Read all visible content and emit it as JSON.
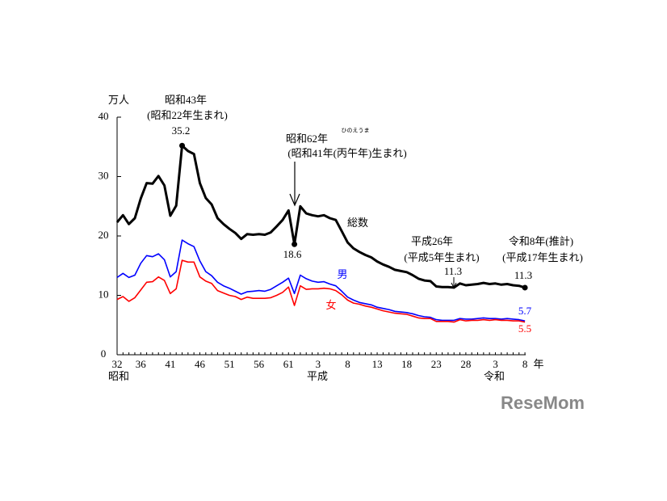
{
  "chart_data": {
    "type": "line",
    "y_unit": "万人",
    "x_unit": "年",
    "categories": [
      "32",
      null,
      null,
      null,
      "36",
      null,
      null,
      null,
      null,
      "41",
      null,
      null,
      null,
      null,
      "46",
      null,
      null,
      null,
      null,
      "51",
      null,
      null,
      null,
      null,
      "56",
      null,
      null,
      null,
      null,
      "61",
      null,
      null,
      null,
      null,
      "3",
      null,
      null,
      null,
      null,
      "8",
      null,
      null,
      null,
      null,
      "13",
      null,
      null,
      null,
      null,
      "18",
      null,
      null,
      null,
      null,
      "23",
      null,
      null,
      null,
      null,
      "28",
      null,
      null,
      null,
      null,
      "3",
      null,
      null,
      null,
      null,
      "8"
    ],
    "era_labels": [
      "昭和",
      "平成",
      "令和"
    ],
    "series": [
      {
        "name": "総数",
        "color": "#000000",
        "values": [
          22.3,
          23.5,
          22.0,
          23.0,
          26.3,
          28.9,
          28.8,
          30.1,
          28.5,
          23.4,
          25.1,
          35.2,
          34.3,
          33.8,
          28.9,
          26.4,
          25.3,
          23.0,
          22.0,
          21.2,
          20.5,
          19.5,
          20.3,
          20.2,
          20.3,
          20.2,
          20.6,
          21.6,
          22.7,
          24.3,
          18.6,
          25.0,
          23.8,
          23.5,
          23.3,
          23.5,
          23.0,
          22.7,
          20.8,
          18.9,
          17.9,
          17.3,
          16.8,
          16.4,
          15.7,
          15.2,
          14.8,
          14.3,
          14.1,
          13.9,
          13.4,
          12.8,
          12.5,
          12.4,
          11.5,
          11.4,
          11.4,
          11.3,
          12.0,
          11.7,
          11.8,
          11.9,
          12.1,
          11.9,
          12.0,
          11.8,
          11.9,
          11.7,
          11.6,
          11.3
        ]
      },
      {
        "name": "男",
        "color": "#0000ff",
        "values": [
          13.0,
          13.7,
          13.0,
          13.4,
          15.4,
          16.7,
          16.5,
          17.0,
          16.0,
          13.1,
          14.0,
          19.3,
          18.7,
          18.2,
          15.8,
          14.0,
          13.3,
          12.2,
          11.6,
          11.2,
          10.7,
          10.2,
          10.6,
          10.7,
          10.8,
          10.7,
          11.0,
          11.6,
          12.2,
          12.9,
          10.3,
          13.4,
          12.8,
          12.4,
          12.2,
          12.3,
          11.9,
          11.6,
          10.7,
          9.7,
          9.2,
          8.8,
          8.6,
          8.4,
          8.0,
          7.8,
          7.6,
          7.3,
          7.2,
          7.1,
          6.9,
          6.6,
          6.4,
          6.3,
          5.9,
          5.8,
          5.8,
          5.8,
          6.1,
          6.0,
          6.0,
          6.1,
          6.2,
          6.1,
          6.1,
          6.0,
          6.1,
          6.0,
          5.9,
          5.7
        ]
      },
      {
        "name": "女",
        "color": "#ff0000",
        "values": [
          9.3,
          9.8,
          9.0,
          9.6,
          10.9,
          12.2,
          12.3,
          13.1,
          12.5,
          10.3,
          11.1,
          15.9,
          15.6,
          15.6,
          13.1,
          12.4,
          12.0,
          10.8,
          10.4,
          10.0,
          9.8,
          9.3,
          9.7,
          9.5,
          9.5,
          9.5,
          9.6,
          10.0,
          10.5,
          11.4,
          8.3,
          11.6,
          11.0,
          11.1,
          11.1,
          11.2,
          11.1,
          10.8,
          10.1,
          9.2,
          8.7,
          8.5,
          8.2,
          8.0,
          7.7,
          7.4,
          7.2,
          7.0,
          6.9,
          6.8,
          6.5,
          6.2,
          6.1,
          6.1,
          5.6,
          5.6,
          5.6,
          5.5,
          5.9,
          5.7,
          5.8,
          5.8,
          5.9,
          5.8,
          5.9,
          5.8,
          5.8,
          5.7,
          5.7,
          5.5
        ]
      }
    ],
    "annotations": [
      "昭和43年",
      "(昭和22年生まれ)",
      "昭和62年",
      "ひのえうま",
      "(昭和41年(丙午年)生まれ)",
      "平成26年",
      "(平成5年生まれ)",
      "令和8年(推計)",
      "(平成17年生まれ)"
    ],
    "ylim": [
      0,
      40
    ],
    "yticks": [
      0,
      10,
      20,
      30,
      40
    ]
  },
  "watermark": "ReseMom"
}
